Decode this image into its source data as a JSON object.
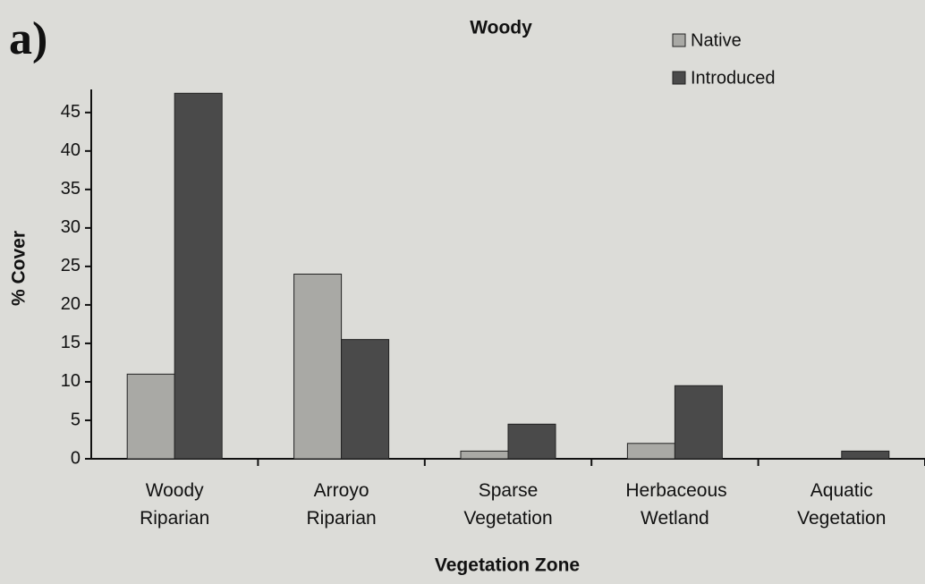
{
  "panel_label": "a)",
  "chart_data": {
    "type": "bar",
    "title": "Woody",
    "x_label": "Vegetation Zone",
    "y_label": "% Cover",
    "categories": [
      "Woody Riparian",
      "Arroyo Riparian",
      "Sparse Vegetation",
      "Herbaceous Wetland",
      "Aquatic Vegetation"
    ],
    "series": [
      {
        "name": "Native",
        "color": "#a9a9a5",
        "values": [
          11,
          24,
          1,
          2,
          0
        ]
      },
      {
        "name": "Introduced",
        "color": "#4a4a4a",
        "values": [
          47.5,
          15.5,
          4.5,
          9.5,
          1
        ]
      }
    ],
    "ylim": [
      0,
      48
    ],
    "yticks": [
      0,
      5,
      10,
      15,
      20,
      25,
      30,
      35,
      40,
      45
    ],
    "legend": "upper-right"
  }
}
